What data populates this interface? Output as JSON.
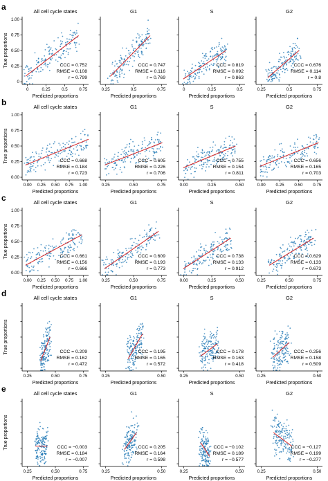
{
  "figure": {
    "ylabel": "True proportions",
    "xlabel": "Predicted proportions",
    "panel_titles": [
      "All cell cycle states",
      "G1",
      "S",
      "G2"
    ]
  },
  "chart_data": [
    {
      "type": "scatter",
      "label": "a",
      "xlim": [
        0,
        1.0
      ],
      "ylim": [
        0,
        1.0
      ],
      "xticks": [
        "0",
        "0.25",
        "0.5",
        "0.75"
      ],
      "yticks": [
        "0",
        "0.25",
        "0.50",
        "0.75",
        "1.00"
      ],
      "subplots": [
        {
          "title": "All cell cycle states",
          "stats": [
            "CCC = 0.752",
            "RMSE = 0.108",
            "r = 0.799"
          ],
          "line": [
            [
              0.05,
              0.12
            ],
            [
              0.85,
              0.72
            ]
          ],
          "xticks": [
            "0",
            "0.25",
            "0.5",
            "0.75"
          ],
          "xlim": [
            0,
            1.0
          ]
        },
        {
          "title": "G1",
          "stats": [
            "CCC = 0.747",
            "RMSE = 0.116",
            "r = 0.769"
          ],
          "line": [
            [
              0.15,
              0.12
            ],
            [
              0.75,
              0.72
            ]
          ],
          "xticks": [
            "0.25",
            "0.5",
            "0.75"
          ],
          "xlim": [
            0,
            1.0
          ]
        },
        {
          "title": "S",
          "stats": [
            "CCC = 0.819",
            "RMSE = 0.092",
            "r = 0.863"
          ],
          "line": [
            [
              0.05,
              0.08
            ],
            [
              0.5,
              0.5
            ]
          ],
          "xticks": [
            "0",
            "0.25",
            "0.5"
          ],
          "xlim": [
            0,
            0.7
          ]
        },
        {
          "title": "G2",
          "stats": [
            "CCC = 0.676",
            "RMSE = 0.114",
            "r = 0.8"
          ],
          "line": [
            [
              0.15,
              0.1
            ],
            [
              0.55,
              0.5
            ]
          ],
          "xticks": [
            "0.25",
            "0.5",
            "0.75"
          ],
          "xlim": [
            0,
            0.85
          ]
        }
      ]
    },
    {
      "type": "scatter",
      "label": "b",
      "ylim": [
        0,
        1.0
      ],
      "yticks": [
        "0.00",
        "0.25",
        "0.50",
        "0.75",
        "1.00"
      ],
      "subplots": [
        {
          "title": "All cell cycle states",
          "stats": [
            "CCC = 0.668",
            "RMSE = 0.184",
            "r = 0.723"
          ],
          "line": [
            [
              0.05,
              0.22
            ],
            [
              1.0,
              0.6
            ]
          ],
          "xticks": [
            "0.00",
            "0.25",
            "0.50",
            "0.75",
            "1.00"
          ],
          "xlim": [
            0,
            1.0
          ]
        },
        {
          "title": "G1",
          "stats": [
            "CCC = 0.605",
            "RMSE = 0.226",
            "r = 0.706"
          ],
          "line": [
            [
              0.15,
              0.22
            ],
            [
              0.8,
              0.55
            ]
          ],
          "xticks": [
            "0.25",
            "0.50",
            "0.75"
          ],
          "xlim": [
            0.1,
            0.85
          ]
        },
        {
          "title": "S",
          "stats": [
            "CCC = 0.755",
            "RMSE = 0.154",
            "r = 0.811"
          ],
          "line": [
            [
              0.05,
              0.18
            ],
            [
              0.6,
              0.5
            ]
          ],
          "xticks": [
            "0.00",
            "0.25",
            "0.50"
          ],
          "xlim": [
            0,
            0.7
          ]
        },
        {
          "title": "G2",
          "stats": [
            "CCC = 0.656",
            "RMSE = 0.165",
            "r = 0.703"
          ],
          "line": [
            [
              0.05,
              0.2
            ],
            [
              0.8,
              0.55
            ]
          ],
          "xticks": [
            "0.00",
            "0.25",
            "0.50",
            "0.75"
          ],
          "xlim": [
            0,
            0.85
          ]
        }
      ]
    },
    {
      "type": "scatter",
      "label": "c",
      "ylim": [
        0,
        1.0
      ],
      "yticks": [
        "0.00",
        "0.25",
        "0.50",
        "0.75",
        "1.00"
      ],
      "subplots": [
        {
          "title": "All cell cycle states",
          "stats": [
            "CCC = 0.661",
            "RMSE = 0.156",
            "r = 0.666"
          ],
          "line": [
            [
              0.05,
              0.15
            ],
            [
              0.9,
              0.6
            ]
          ],
          "xticks": [
            "0.00",
            "0.25",
            "0.50",
            "0.75",
            "1.00"
          ],
          "xlim": [
            0,
            1.0
          ]
        },
        {
          "title": "G1",
          "stats": [
            "CCC = 0.609",
            "RMSE = 0.193",
            "r = 0.773"
          ],
          "line": [
            [
              0.15,
              0.1
            ],
            [
              0.8,
              0.65
            ]
          ],
          "xticks": [
            "0.25",
            "0.50",
            "0.75"
          ],
          "xlim": [
            0.1,
            0.9
          ]
        },
        {
          "title": "S",
          "stats": [
            "CCC = 0.738",
            "RMSE = 0.133",
            "r = 0.912"
          ],
          "line": [
            [
              0.05,
              0.1
            ],
            [
              0.55,
              0.55
            ]
          ],
          "xticks": [
            "0.00",
            "0.25",
            "0.50"
          ],
          "xlim": [
            0,
            0.7
          ]
        },
        {
          "title": "G2",
          "stats": [
            "CCC = 0.629",
            "RMSE = 0.133",
            "r = 0.673"
          ],
          "line": [
            [
              0.25,
              0.15
            ],
            [
              0.75,
              0.55
            ]
          ],
          "xticks": [
            "0.25",
            "0.50",
            "0.75"
          ],
          "xlim": [
            0.1,
            0.85
          ]
        }
      ]
    },
    {
      "type": "scatter",
      "label": "d",
      "ylim": [
        0,
        1.0
      ],
      "yticks": [],
      "subplots": [
        {
          "title": "All cell cycle states",
          "stats": [
            "CCC = 0.209",
            "RMSE = 0.162",
            "r = 0.472"
          ],
          "line": [
            [
              0.28,
              0.15
            ],
            [
              0.42,
              0.5
            ]
          ],
          "xticks": [
            "0.25",
            "0.50",
            "0.75"
          ],
          "xlim": [
            0,
            1.0
          ]
        },
        {
          "title": "G1",
          "stats": [
            "CCC = 0.195",
            "RMSE = 0.165",
            "r = 0.572"
          ],
          "line": [
            [
              0.33,
              0.18
            ],
            [
              0.45,
              0.55
            ]
          ],
          "xticks": [
            "0.25",
            "0.50"
          ],
          "xlim": [
            0.1,
            0.65
          ]
        },
        {
          "title": "S",
          "stats": [
            "CCC = 0.178",
            "RMSE = 0.163",
            "r = 0.418"
          ],
          "line": [
            [
              0.3,
              0.22
            ],
            [
              0.45,
              0.4
            ]
          ],
          "xticks": [
            "0.25",
            "0.50"
          ],
          "xlim": [
            0.1,
            0.7
          ]
        },
        {
          "title": "G2",
          "stats": [
            "CCC = 0.256",
            "RMSE = 0.158",
            "r = 0.509"
          ],
          "line": [
            [
              0.25,
              0.2
            ],
            [
              0.4,
              0.42
            ]
          ],
          "xticks": [
            "0.25",
            "0.50"
          ],
          "xlim": [
            0.1,
            0.7
          ]
        }
      ]
    },
    {
      "type": "scatter",
      "label": "e",
      "ylim": [
        0,
        1.0
      ],
      "yticks": [],
      "subplots": [
        {
          "title": "All cell cycle states",
          "stats": [
            "CCC = −0.003",
            "RMSE = 0.184",
            "r = −0.007"
          ],
          "line": [
            [
              0.2,
              0.3
            ],
            [
              0.38,
              0.3
            ]
          ],
          "xticks": [
            "0.25",
            "0.50",
            "0.75"
          ],
          "xlim": [
            0,
            1.0
          ]
        },
        {
          "title": "G1",
          "stats": [
            "CCC = 0.205",
            "RMSE = 0.164",
            "r = 0.598"
          ],
          "line": [
            [
              0.3,
              0.25
            ],
            [
              0.4,
              0.5
            ]
          ],
          "xticks": [
            "0.25",
            "0.50"
          ],
          "xlim": [
            0.1,
            0.65
          ]
        },
        {
          "title": "S",
          "stats": [
            "CCC = −0.102",
            "RMSE = 0.189",
            "r = −0.577"
          ],
          "line": [
            [
              0.3,
              0.35
            ],
            [
              0.38,
              0.15
            ]
          ],
          "xticks": [
            "0.25",
            "0.50"
          ],
          "xlim": [
            0.1,
            0.7
          ]
        },
        {
          "title": "G2",
          "stats": [
            "CCC = −0.127",
            "RMSE = 0.199",
            "r = −0.277"
          ],
          "line": [
            [
              0.22,
              0.5
            ],
            [
              0.4,
              0.3
            ]
          ],
          "xticks": [
            "0.25",
            "0.50"
          ],
          "xlim": [
            0.05,
            0.7
          ]
        }
      ]
    }
  ],
  "style": {
    "point_color": "#1f77b4",
    "fit_color": "#d62728",
    "axis_color": "#000000"
  }
}
